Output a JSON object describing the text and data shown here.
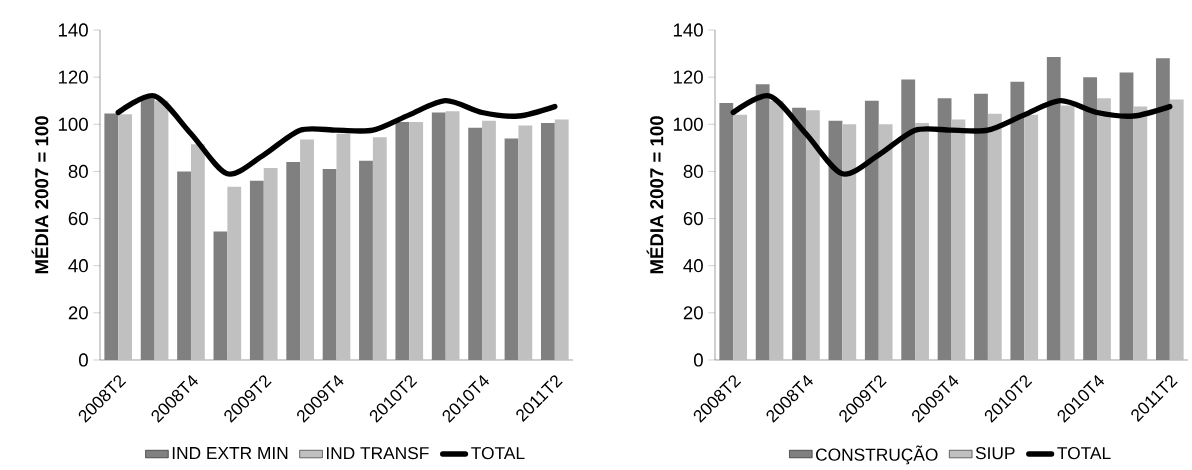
{
  "chart_data": [
    {
      "type": "bar",
      "ylabel": "MÉDIA 2007 = 100",
      "categories": [
        "2008T2",
        null,
        "2008T4",
        null,
        "2009T2",
        null,
        "2009T4",
        null,
        "2010T2",
        null,
        "2010T4",
        null,
        "2011T2"
      ],
      "ylim": [
        0,
        140
      ],
      "yticks": [
        0,
        20,
        40,
        60,
        80,
        100,
        120,
        140
      ],
      "legend": "bottom",
      "series": [
        {
          "name": "IND EXTR MIN",
          "color": "#808080",
          "values": [
            104.6,
            111,
            80,
            54.5,
            76,
            84,
            81,
            84.5,
            101,
            105,
            98.5,
            94,
            100.5
          ]
        },
        {
          "name": "IND TRANSF",
          "color": "#c0c0c0",
          "values": [
            104.3,
            110,
            91.5,
            73.5,
            81.5,
            93.5,
            96,
            94.5,
            101,
            105.5,
            101.5,
            99.5,
            102
          ]
        },
        {
          "name": "TOTAL",
          "type": "line",
          "color": "#000000",
          "values": [
            105,
            112,
            96,
            79,
            87,
            97.5,
            97.5,
            97.5,
            104,
            110,
            105,
            103.5,
            107.5
          ]
        }
      ]
    },
    {
      "type": "bar",
      "ylabel": "MÉDIA 2007 = 100",
      "categories": [
        "2008T2",
        null,
        "2008T4",
        null,
        "2009T2",
        null,
        "2009T4",
        null,
        "2010T2",
        null,
        "2010T4",
        null,
        "2011T2"
      ],
      "ylim": [
        0,
        140
      ],
      "yticks": [
        0,
        20,
        40,
        60,
        80,
        100,
        120,
        140
      ],
      "legend": "bottom",
      "series": [
        {
          "name": "CONSTRUÇÃO",
          "color": "#808080",
          "values": [
            109,
            117,
            107,
            101.5,
            110,
            119,
            111,
            113,
            118,
            128.5,
            120,
            122,
            128
          ]
        },
        {
          "name": "SIUP",
          "color": "#c0c0c0",
          "values": [
            104,
            110,
            106,
            100,
            100,
            100.5,
            102,
            104.5,
            104,
            108,
            111,
            107.5,
            110.5
          ]
        },
        {
          "name": "TOTAL",
          "type": "line",
          "color": "#000000",
          "values": [
            105,
            112,
            96,
            79,
            87,
            97.5,
            97.5,
            97.5,
            104,
            110,
            105,
            103.5,
            107.5
          ]
        }
      ]
    }
  ]
}
